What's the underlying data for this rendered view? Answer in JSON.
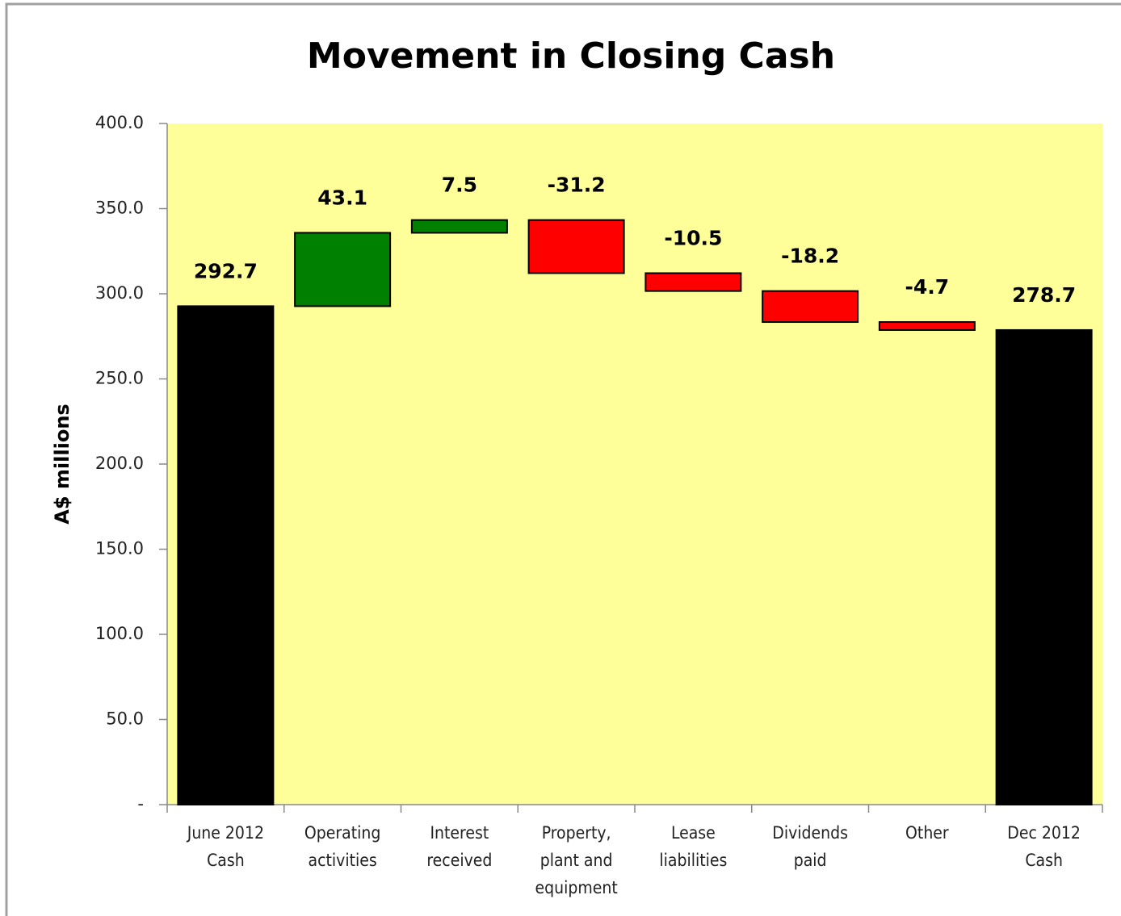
{
  "chart_data": {
    "type": "waterfall",
    "title": "Movement in Closing Cash",
    "y_label": "A$ millions",
    "categories": [
      "June 2012 Cash",
      "Operating activities",
      "Interest received",
      "Property, plant and equipment",
      "Lease liabilities",
      "Dividends paid",
      "Other",
      "Dec 2012 Cash"
    ],
    "values": [
      292.7,
      43.1,
      7.5,
      -31.2,
      -10.5,
      -18.2,
      -4.7,
      278.7
    ],
    "measure": [
      "total",
      "relative",
      "relative",
      "relative",
      "relative",
      "relative",
      "relative",
      "total"
    ],
    "colors": {
      "total": "#000000",
      "increase": "#008000",
      "decrease": "#ff0000"
    },
    "ylim": [
      0,
      400
    ],
    "yticks": [
      {
        "value": 0,
        "label": "-"
      },
      {
        "value": 50,
        "label": "50.0"
      },
      {
        "value": 100,
        "label": "100.0"
      },
      {
        "value": 150,
        "label": "150.0"
      },
      {
        "value": 200,
        "label": "200.0"
      },
      {
        "value": 250,
        "label": "250.0"
      },
      {
        "value": 300,
        "label": "300.0"
      },
      {
        "value": 350,
        "label": "350.0"
      },
      {
        "value": 400,
        "label": "400.0"
      }
    ],
    "grid": false
  }
}
